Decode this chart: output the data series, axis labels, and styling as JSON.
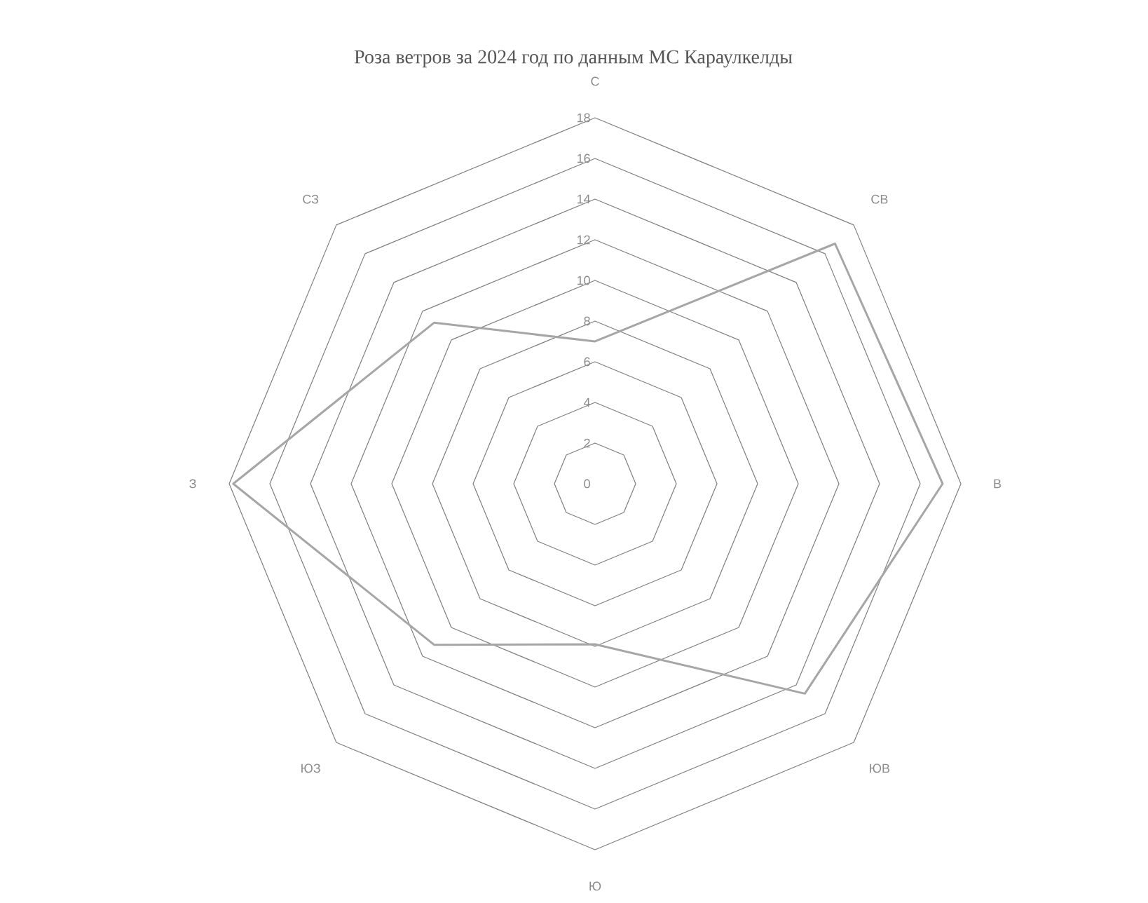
{
  "chart_data": {
    "type": "radar",
    "title": "Роза ветров за 2024 год по данным МС Караулкелды",
    "categories": [
      "С",
      "СВ",
      "В",
      "ЮВ",
      "Ю",
      "ЮЗ",
      "З",
      "СЗ"
    ],
    "series": [
      {
        "color": "#a6a6a6",
        "values": [
          7.0,
          16.7,
          17.1,
          14.6,
          7.9,
          11.2,
          17.8,
          11.2
        ]
      }
    ],
    "ylim": [
      0,
      18
    ],
    "yticks": [
      0,
      2,
      4,
      6,
      8,
      10,
      12,
      14,
      16,
      18
    ],
    "grid": true
  }
}
